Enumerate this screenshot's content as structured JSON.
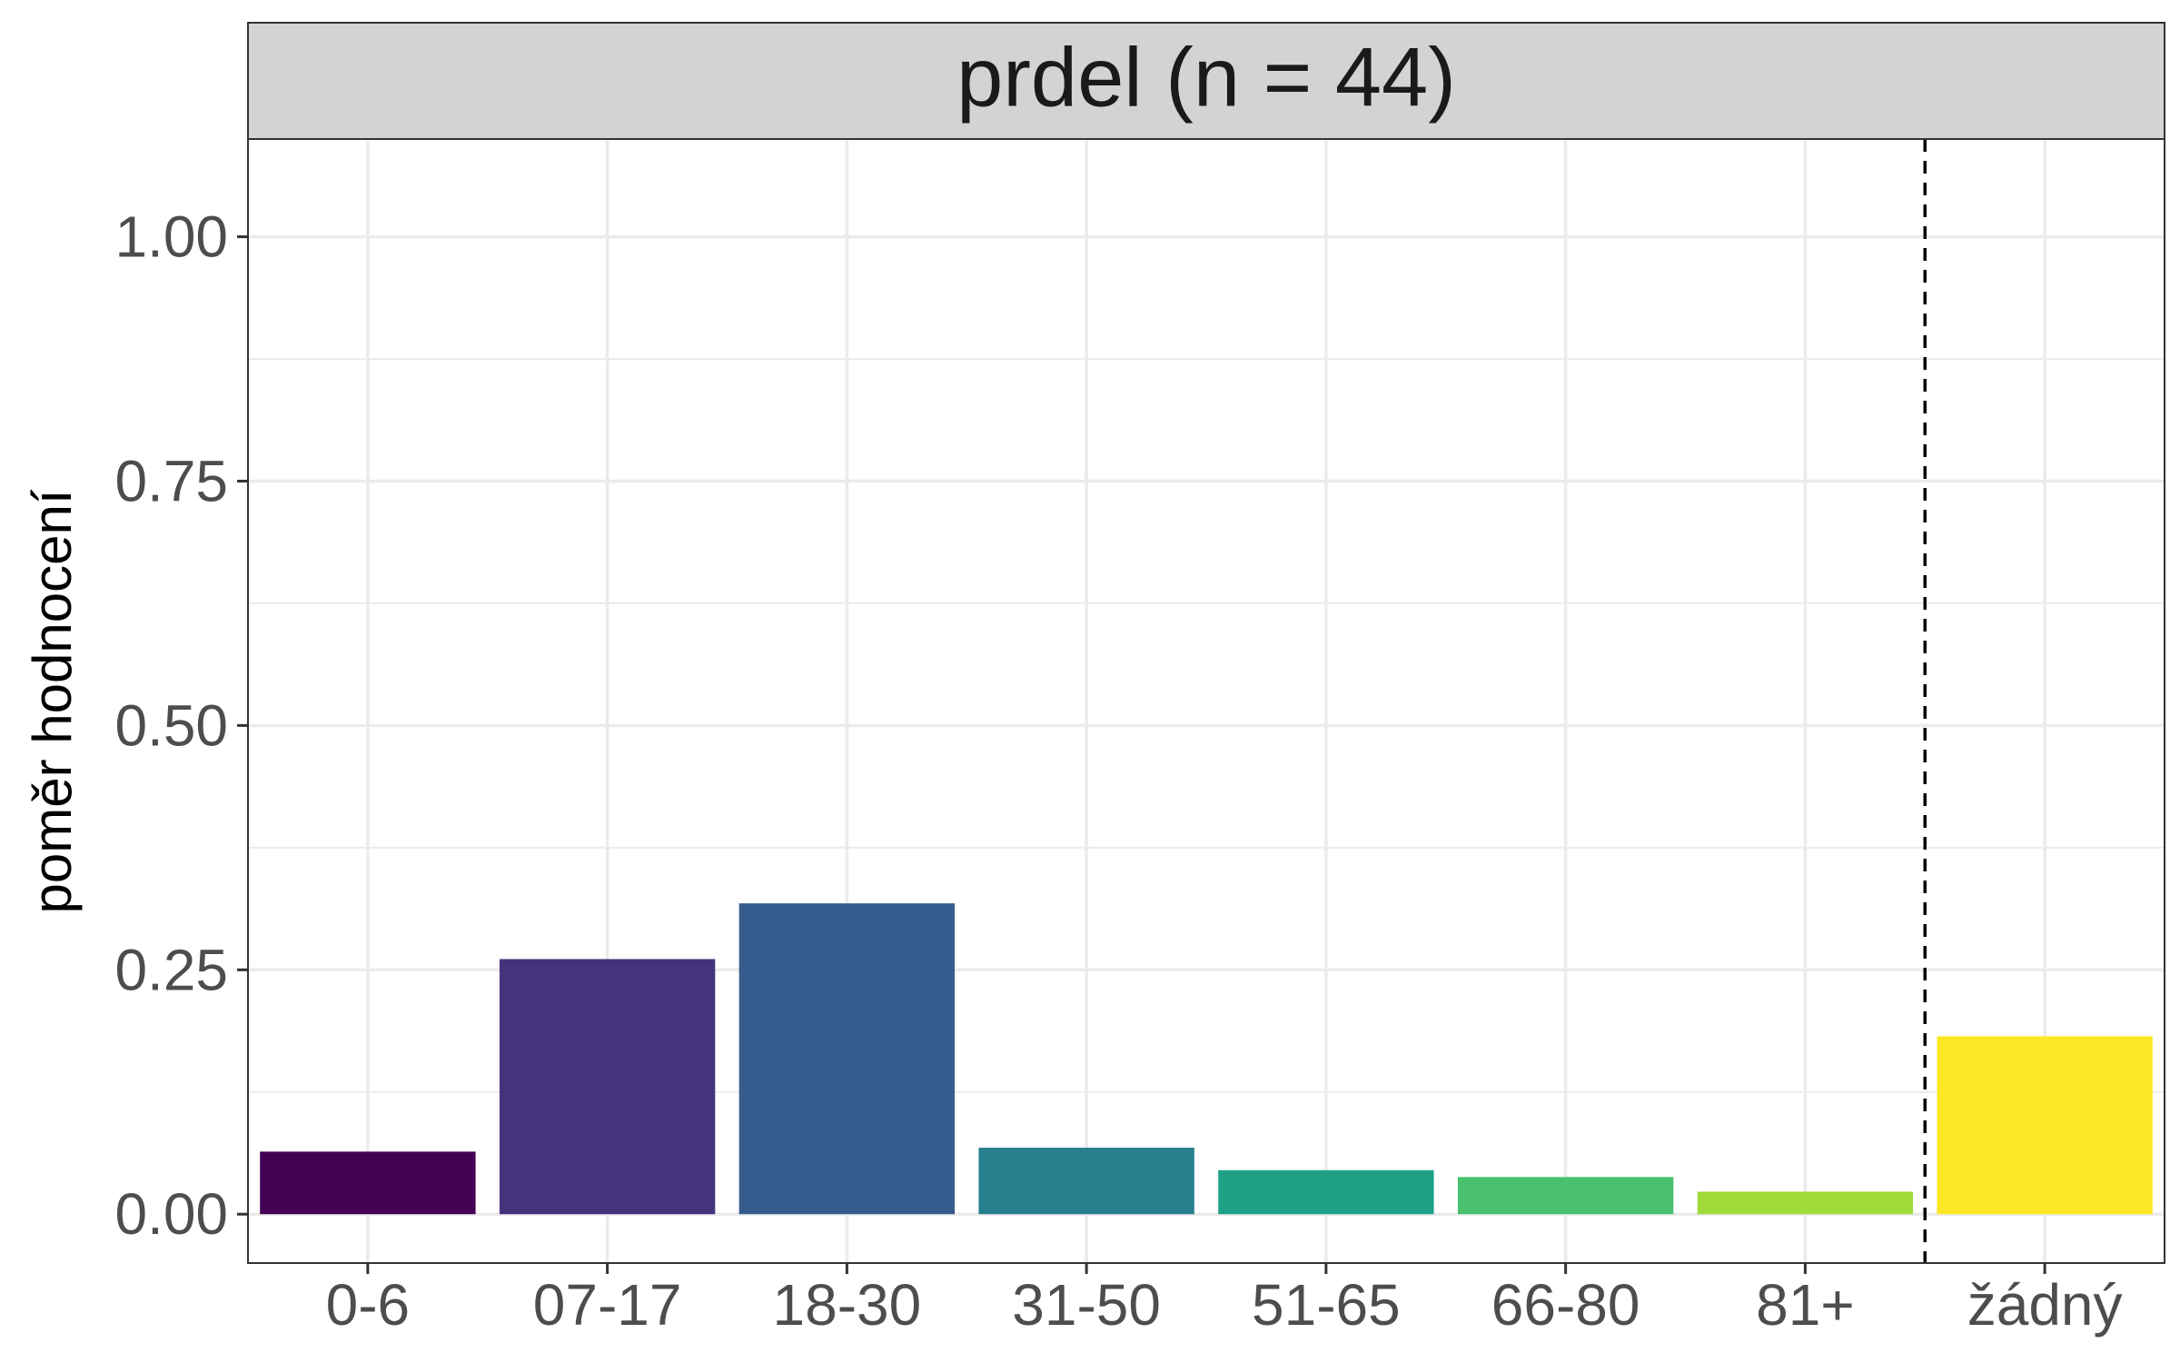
{
  "chart_data": {
    "type": "bar",
    "title": "prdel (n = 44)",
    "xlabel": "",
    "ylabel": "poměr hodnocení",
    "categories": [
      "0-6",
      "07-17",
      "18-30",
      "31-50",
      "51-65",
      "66-80",
      "81+",
      "žádný"
    ],
    "values": [
      0.064,
      0.261,
      0.318,
      0.068,
      0.045,
      0.038,
      0.023,
      0.182
    ],
    "colors": [
      "#440154",
      "#46337E",
      "#365C8D",
      "#277F8E",
      "#1FA187",
      "#4AC16D",
      "#9FDA3A",
      "#FDE725"
    ],
    "ylim": [
      -0.05,
      1.1
    ],
    "yticks": [
      "0.00",
      "0.25",
      "0.50",
      "0.75",
      "1.00"
    ],
    "ytick_values": [
      0,
      0.25,
      0.5,
      0.75,
      1.0
    ],
    "separator_after_category": "81+",
    "separator_style": "dashed",
    "grid": true,
    "legend": "none",
    "strip_color": "#D3D3D3"
  }
}
